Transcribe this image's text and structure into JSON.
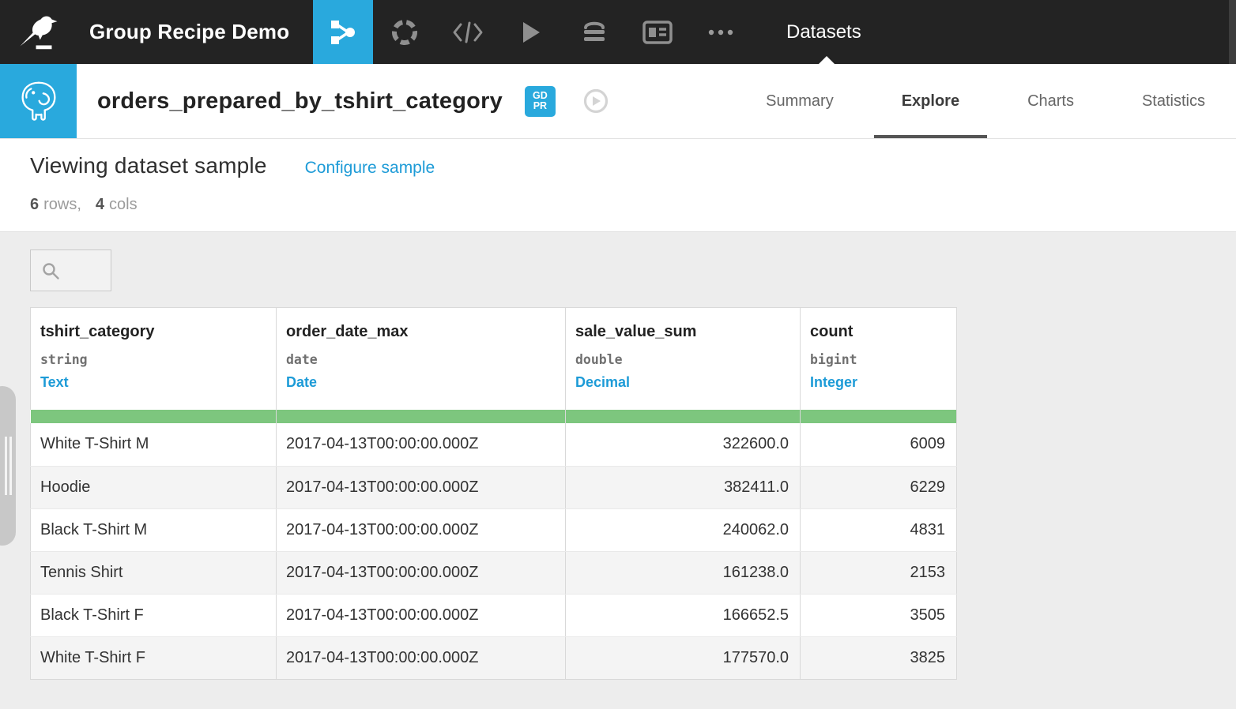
{
  "colors": {
    "topbar_bg": "#232323",
    "accent_blue": "#29a9dd",
    "link_blue": "#1d9bd7",
    "meter_green": "#7dc67e"
  },
  "topbar": {
    "project_title": "Group Recipe Demo",
    "section_label": "Datasets",
    "active_icon": "flow",
    "icons": [
      "dataiku-bird-logo",
      "flow-icon",
      "lab-icon",
      "code-icon",
      "play-icon",
      "jobs-stack-icon",
      "dashboard-icon",
      "more-ellipsis-icon"
    ]
  },
  "header": {
    "dataset_name": "orders_prepared_by_tshirt_category",
    "badge_line1": "GD",
    "badge_line2": "PR",
    "tabs": [
      {
        "label": "Summary"
      },
      {
        "label": "Explore"
      },
      {
        "label": "Charts"
      },
      {
        "label": "Statistics"
      }
    ],
    "active_tab": "Explore"
  },
  "sample": {
    "title": "Viewing dataset sample",
    "configure_label": "Configure sample",
    "rows_count": "6",
    "rows_label": "rows,",
    "cols_count": "4",
    "cols_label": "cols"
  },
  "search": {
    "value": "",
    "placeholder": ""
  },
  "table": {
    "columns": [
      {
        "name": "tshirt_category",
        "type": "string",
        "meaning": "Text",
        "align": "left"
      },
      {
        "name": "order_date_max",
        "type": "date",
        "meaning": "Date",
        "align": "left"
      },
      {
        "name": "sale_value_sum",
        "type": "double",
        "meaning": "Decimal",
        "align": "right"
      },
      {
        "name": "count",
        "type": "bigint",
        "meaning": "Integer",
        "align": "right"
      }
    ],
    "rows": [
      [
        "White T-Shirt M",
        "2017-04-13T00:00:00.000Z",
        "322600.0",
        "6009"
      ],
      [
        "Hoodie",
        "2017-04-13T00:00:00.000Z",
        "382411.0",
        "6229"
      ],
      [
        "Black T-Shirt M",
        "2017-04-13T00:00:00.000Z",
        "240062.0",
        "4831"
      ],
      [
        "Tennis Shirt",
        "2017-04-13T00:00:00.000Z",
        "161238.0",
        "2153"
      ],
      [
        "Black T-Shirt F",
        "2017-04-13T00:00:00.000Z",
        "166652.5",
        "3505"
      ],
      [
        "White T-Shirt F",
        "2017-04-13T00:00:00.000Z",
        "177570.0",
        "3825"
      ]
    ]
  }
}
